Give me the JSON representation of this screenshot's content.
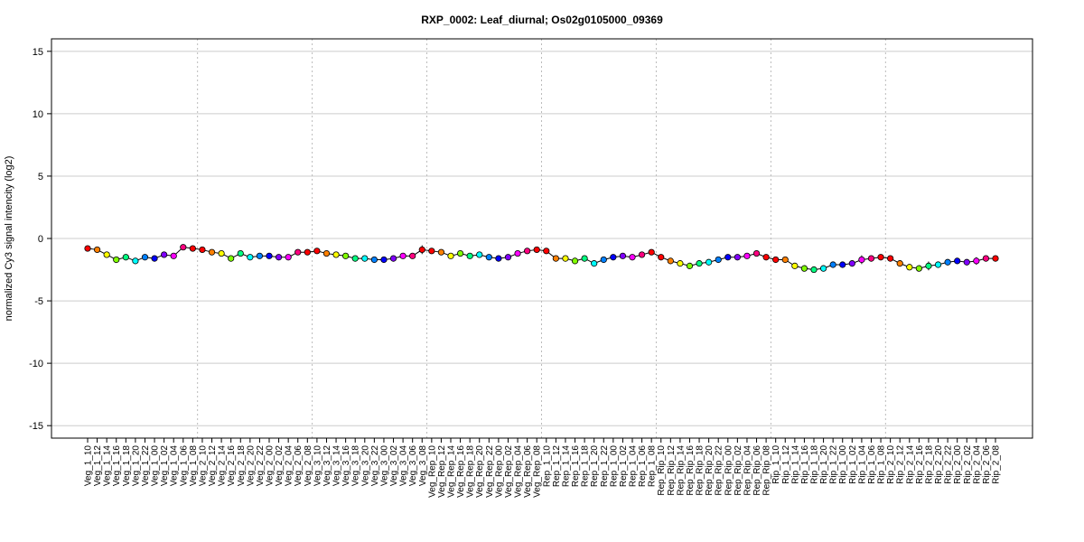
{
  "chart_data": {
    "type": "line",
    "title": "RXP_0002: Leaf_diurnal; Os02g0105000_09369",
    "xlabel": "",
    "ylabel": "normalized Cy3 signal intencity (log2)",
    "ylim": [
      -16,
      16
    ],
    "yticks": [
      -15,
      -10,
      -5,
      0,
      5,
      10,
      15
    ],
    "grid": true,
    "group_boundaries_after_index": [
      11,
      23,
      35,
      47,
      59,
      71,
      83
    ],
    "group_colors": [
      "#FF0000",
      "#FF8000",
      "#FFFF00",
      "#80FF00",
      "#00FF80",
      "#00FFFF",
      "#0080FF",
      "#0000FF",
      "#8000FF",
      "#FF00FF",
      "#FF0080",
      "#FF0000"
    ],
    "categories": [
      "Veg_1_10",
      "Veg_1_12",
      "Veg_1_14",
      "Veg_1_16",
      "Veg_1_18",
      "Veg_1_20",
      "Veg_1_22",
      "Veg_1_00",
      "Veg_1_02",
      "Veg_1_04",
      "Veg_1_06",
      "Veg_1_08",
      "Veg_2_10",
      "Veg_2_12",
      "Veg_2_14",
      "Veg_2_16",
      "Veg_2_18",
      "Veg_2_20",
      "Veg_2_22",
      "Veg_2_00",
      "Veg_2_02",
      "Veg_2_04",
      "Veg_2_06",
      "Veg_2_08",
      "Veg_3_10",
      "Veg_3_12",
      "Veg_3_14",
      "Veg_3_16",
      "Veg_3_18",
      "Veg_3_20",
      "Veg_3_22",
      "Veg_3_00",
      "Veg_3_02",
      "Veg_3_04",
      "Veg_3_06",
      "Veg_3_08",
      "Veg_Rep_10",
      "Veg_Rep_12",
      "Veg_Rep_14",
      "Veg_Rep_16",
      "Veg_Rep_18",
      "Veg_Rep_20",
      "Veg_Rep_22",
      "Veg_Rep_00",
      "Veg_Rep_02",
      "Veg_Rep_04",
      "Veg_Rep_06",
      "Veg_Rep_08",
      "Rep_1_10",
      "Rep_1_12",
      "Rep_1_14",
      "Rep_1_16",
      "Rep_1_18",
      "Rep_1_20",
      "Rep_1_22",
      "Rep_1_00",
      "Rep_1_02",
      "Rep_1_04",
      "Rep_1_06",
      "Rep_1_08",
      "Rep_Rip_10",
      "Rep_Rip_12",
      "Rep_Rip_14",
      "Rep_Rip_16",
      "Rep_Rip_18",
      "Rep_Rip_20",
      "Rep_Rip_22",
      "Rep_Rip_00",
      "Rep_Rip_02",
      "Rep_Rip_04",
      "Rep_Rip_06",
      "Rep_Rip_08",
      "Rip_1_10",
      "Rip_1_12",
      "Rip_1_14",
      "Rip_1_16",
      "Rip_1_18",
      "Rip_1_20",
      "Rip_1_22",
      "Rip_1_00",
      "Rip_1_02",
      "Rip_1_04",
      "Rip_1_06",
      "Rip_1_08",
      "Rip_2_10",
      "Rip_2_12",
      "Rip_2_14",
      "Rip_2_16",
      "Rip_2_18",
      "Rip_2_20",
      "Rip_2_22",
      "Rip_2_00",
      "Rip_2_02",
      "Rip_2_04",
      "Rip_2_06",
      "Rip_2_08"
    ],
    "values": [
      -0.8,
      -0.9,
      -1.3,
      -1.7,
      -1.5,
      -1.8,
      -1.5,
      -1.6,
      -1.3,
      -1.4,
      -0.7,
      -0.8,
      -0.9,
      -1.1,
      -1.2,
      -1.6,
      -1.2,
      -1.5,
      -1.4,
      -1.4,
      -1.5,
      -1.5,
      -1.1,
      -1.1,
      -1.0,
      -1.2,
      -1.3,
      -1.4,
      -1.6,
      -1.6,
      -1.7,
      -1.7,
      -1.6,
      -1.4,
      -1.4,
      -0.9,
      -1.0,
      -1.1,
      -1.4,
      -1.2,
      -1.4,
      -1.3,
      -1.5,
      -1.6,
      -1.5,
      -1.2,
      -1.0,
      -0.9,
      -1.0,
      -1.6,
      -1.6,
      -1.8,
      -1.6,
      -2.0,
      -1.7,
      -1.5,
      -1.4,
      -1.5,
      -1.3,
      -1.1,
      -1.5,
      -1.8,
      -2.0,
      -2.2,
      -2.0,
      -1.9,
      -1.7,
      -1.5,
      -1.5,
      -1.4,
      -1.2,
      -1.5,
      -1.7,
      -1.7,
      -2.2,
      -2.4,
      -2.5,
      -2.4,
      -2.1,
      -2.1,
      -2.0,
      -1.7,
      -1.6,
      -1.5,
      -1.6,
      -2.0,
      -2.3,
      -2.4,
      -2.2,
      -2.1,
      -1.9,
      -1.8,
      -1.9,
      -1.8,
      -1.6,
      -1.6
    ],
    "errors": [
      0.1,
      0.1,
      0.1,
      0.1,
      0.1,
      0.1,
      0.15,
      0.1,
      0.1,
      0.1,
      0.1,
      0.1,
      0.1,
      0.1,
      0.1,
      0.1,
      0.1,
      0.1,
      0.1,
      0.1,
      0.1,
      0.1,
      0.1,
      0.1,
      0.1,
      0.1,
      0.1,
      0.1,
      0.15,
      0.1,
      0.1,
      0.1,
      0.1,
      0.1,
      0.1,
      0.35,
      0.1,
      0.1,
      0.1,
      0.1,
      0.1,
      0.1,
      0.1,
      0.1,
      0.1,
      0.1,
      0.1,
      0.1,
      0.1,
      0.1,
      0.15,
      0.1,
      0.1,
      0.1,
      0.1,
      0.1,
      0.1,
      0.1,
      0.1,
      0.15,
      0.1,
      0.1,
      0.1,
      0.1,
      0.1,
      0.1,
      0.1,
      0.1,
      0.1,
      0.1,
      0.1,
      0.1,
      0.1,
      0.1,
      0.1,
      0.1,
      0.1,
      0.1,
      0.15,
      0.1,
      0.1,
      0.35,
      0.1,
      0.1,
      0.1,
      0.1,
      0.1,
      0.1,
      0.35,
      0.2,
      0.1,
      0.1,
      0.1,
      0.3,
      0.1,
      0.1
    ]
  }
}
